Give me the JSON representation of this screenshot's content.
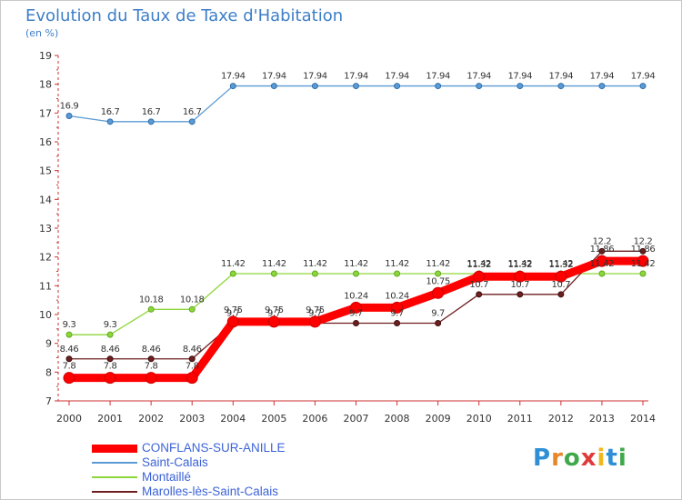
{
  "title": "Evolution du Taux de Taxe d'Habitation",
  "subtitle": "(en %)",
  "logo": {
    "text": "Proxiti",
    "letters": [
      "P",
      "r",
      "o",
      "x",
      "i",
      "t",
      "i"
    ],
    "colors": [
      "#2e8fd6",
      "#e8862a",
      "#3fa84a",
      "#e03b3b",
      "#f0b81c",
      "#2e8fd6",
      "#3fa84a"
    ]
  },
  "chart_data": {
    "type": "line",
    "title": "Evolution du Taux de Taxe d'Habitation",
    "ylabel": "(en %)",
    "xlabel": "",
    "x": [
      2000,
      2001,
      2002,
      2003,
      2004,
      2005,
      2006,
      2007,
      2008,
      2009,
      2010,
      2011,
      2012,
      2013,
      2014
    ],
    "ylim": [
      7,
      19
    ],
    "yticks": [
      7,
      8,
      9,
      10,
      11,
      12,
      13,
      14,
      15,
      16,
      17,
      18,
      19
    ],
    "grid": false,
    "legend_position": "bottom-left",
    "series": [
      {
        "name": "CONFLANS-SUR-ANILLE",
        "color": "#ff0000",
        "values": [
          7.8,
          7.8,
          7.8,
          7.8,
          9.75,
          9.75,
          9.75,
          10.24,
          10.24,
          10.75,
          11.32,
          11.32,
          11.32,
          11.86,
          11.86
        ]
      },
      {
        "name": "Saint-Calais",
        "color": "#5b9bd5",
        "values": [
          16.9,
          16.7,
          16.7,
          16.7,
          17.94,
          17.94,
          17.94,
          17.94,
          17.94,
          17.94,
          17.94,
          17.94,
          17.94,
          17.94,
          17.94
        ]
      },
      {
        "name": "Montaillé",
        "color": "#8dd63a",
        "values": [
          9.3,
          9.3,
          10.18,
          10.18,
          11.42,
          11.42,
          11.42,
          11.42,
          11.42,
          11.42,
          11.42,
          11.42,
          11.42,
          11.42,
          11.42
        ]
      },
      {
        "name": "Marolles-lès-Saint-Calais",
        "color": "#6e1f1f",
        "values": [
          8.46,
          8.46,
          8.46,
          8.46,
          9.7,
          9.7,
          9.7,
          9.7,
          9.7,
          9.7,
          10.7,
          10.7,
          10.7,
          12.2,
          12.2
        ]
      }
    ],
    "point_labels": {
      "CONFLANS-SUR-ANILLE": [
        "7.8",
        "7.8",
        "7.8",
        "7.8",
        "9.75",
        "9.75",
        "9.75",
        "10.24",
        "10.24",
        "10.75",
        "11.32",
        "11.32",
        "11.32",
        "11.86",
        "11.86"
      ],
      "Saint-Calais": [
        "16.9",
        "16.7",
        "16.7",
        "16.7",
        "17.94",
        "17.94",
        "17.94",
        "17.94",
        "17.94",
        "17.94",
        "17.94",
        "17.94",
        "17.94",
        "17.94",
        "17.94"
      ],
      "Montaillé": [
        "9.3",
        "9.3",
        "10.18",
        "10.18",
        "11.42",
        "11.42",
        "11.42",
        "11.42",
        "11.42",
        "11.42",
        "11.42",
        "11.42",
        "11.42",
        "11.42",
        "11.42"
      ],
      "Marolles-lès-Saint-Calais": [
        "8.46",
        "8.46",
        "8.46",
        "8.46",
        "9.7",
        "9.7",
        "9.7",
        "9.7",
        "9.7",
        "9.7",
        "10.7",
        "10.7",
        "10.7",
        "12.2",
        "12.2"
      ]
    }
  }
}
